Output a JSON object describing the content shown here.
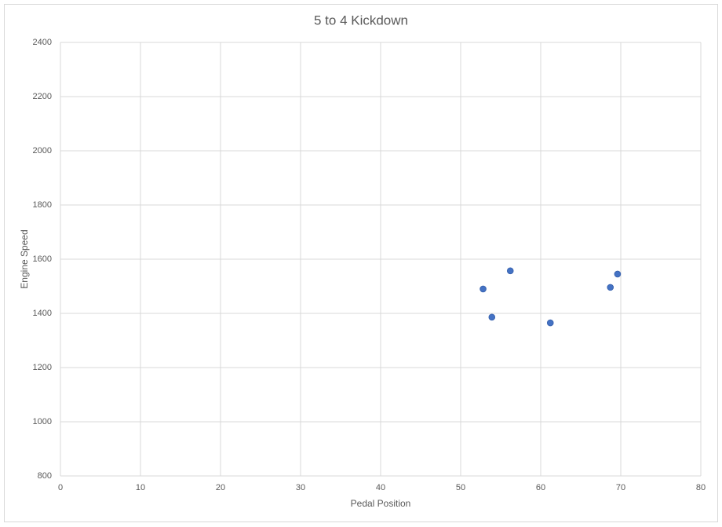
{
  "chart_data": {
    "type": "scatter",
    "title": "5 to 4 Kickdown",
    "x_label": "Pedal Position",
    "y_label": "Engine Speed",
    "x": [
      52.8,
      53.9,
      56.2,
      61.2,
      68.7,
      69.6
    ],
    "values": [
      1490,
      1386,
      1557,
      1365,
      1496,
      1545
    ],
    "color": "#4472c4",
    "xlim": [
      0,
      80
    ],
    "xticks": [
      0,
      10,
      20,
      30,
      40,
      50,
      60,
      70,
      80
    ],
    "ylim": [
      800,
      2400
    ],
    "yticks": [
      800,
      1000,
      1200,
      1400,
      1600,
      1800,
      2000,
      2200,
      2400
    ],
    "grid": true
  }
}
